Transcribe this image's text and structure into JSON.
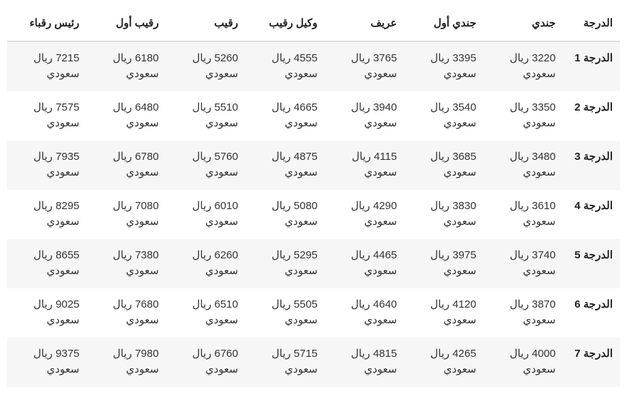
{
  "table": {
    "type": "table",
    "background_color": "#ffffff",
    "row_alt_bg": "#f6f6f6",
    "header_border": "#dddddd",
    "text_color": "#333333",
    "bold_color": "#222222",
    "font_size": 15,
    "currency": "ريال سعودي",
    "columns": [
      "الدرجة",
      "جندي",
      "جندي أول",
      "عريف",
      "وكيل رقيب",
      "رقيب",
      "رقيب أول",
      "رئيس رقباء"
    ],
    "rows": [
      {
        "grade": "الدرجة 1",
        "values": [
          3220,
          3395,
          3765,
          4555,
          5260,
          6180,
          7215
        ]
      },
      {
        "grade": "الدرجة 2",
        "values": [
          3350,
          3540,
          3940,
          4665,
          5510,
          6480,
          7575
        ]
      },
      {
        "grade": "الدرجة 3",
        "values": [
          3480,
          3685,
          4115,
          4875,
          5760,
          6780,
          7935
        ]
      },
      {
        "grade": "الدرجة 4",
        "values": [
          3610,
          3830,
          4290,
          5080,
          6010,
          7080,
          8295
        ]
      },
      {
        "grade": "الدرجة 5",
        "values": [
          3740,
          3975,
          4465,
          5295,
          6260,
          7380,
          8655
        ]
      },
      {
        "grade": "الدرجة 6",
        "values": [
          3870,
          4120,
          4640,
          5505,
          6510,
          7680,
          9025
        ]
      },
      {
        "grade": "الدرجة 7",
        "values": [
          4000,
          4265,
          4815,
          5715,
          6760,
          7980,
          9375
        ]
      }
    ]
  }
}
